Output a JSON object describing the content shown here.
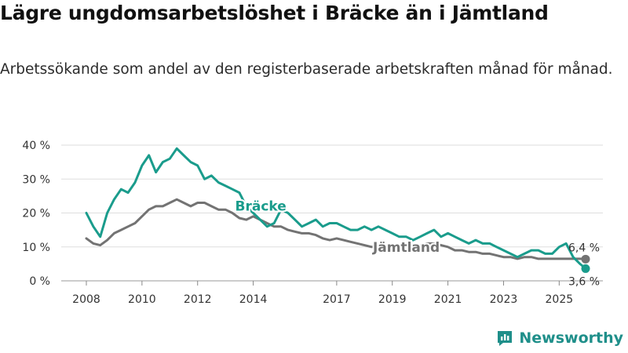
{
  "header": {
    "title": "Lägre ungdomsarbetslöshet i Bräcke än i Jämtland",
    "subtitle": "Arbetssökande som andel av den registerbaserade arbetskraften månad för månad."
  },
  "brand": {
    "name": "Newsworthy"
  },
  "colors": {
    "bracke": "#1a9c8c",
    "jamtland": "#737373",
    "grid": "#dddddd"
  },
  "chart_data": {
    "type": "line",
    "title": "Lägre ungdomsarbetslöshet i Bräcke än i Jämtland",
    "xlabel": "",
    "ylabel": "",
    "xlim": [
      2008,
      2025.95
    ],
    "ylim": [
      0,
      40
    ],
    "yticks": [
      0,
      10,
      20,
      30,
      40
    ],
    "ytick_labels": [
      "0 %",
      "10 %",
      "20 %",
      "30 %",
      "40 %"
    ],
    "xticks": [
      2008,
      2010,
      2012,
      2014,
      2017,
      2019,
      2021,
      2023,
      2025
    ],
    "xtick_labels": [
      "2008",
      "2010",
      "2012",
      "2014",
      "2017",
      "2019",
      "2021",
      "2023",
      "2025"
    ],
    "grid": true,
    "series": [
      {
        "name": "Bräcke",
        "label": "Bräcke",
        "color": "#1a9c8c",
        "end_label": "3,6 %",
        "end_value": 3.6,
        "x": [
          2008.0,
          2008.25,
          2008.5,
          2008.75,
          2009.0,
          2009.25,
          2009.5,
          2009.75,
          2010.0,
          2010.25,
          2010.5,
          2010.75,
          2011.0,
          2011.25,
          2011.5,
          2011.75,
          2012.0,
          2012.25,
          2012.5,
          2012.75,
          2013.0,
          2013.25,
          2013.5,
          2013.75,
          2014.0,
          2014.25,
          2014.5,
          2014.75,
          2015.0,
          2015.25,
          2015.5,
          2015.75,
          2016.0,
          2016.25,
          2016.5,
          2016.75,
          2017.0,
          2017.25,
          2017.5,
          2017.75,
          2018.0,
          2018.25,
          2018.5,
          2018.75,
          2019.0,
          2019.25,
          2019.5,
          2019.75,
          2020.0,
          2020.25,
          2020.5,
          2020.75,
          2021.0,
          2021.25,
          2021.5,
          2021.75,
          2022.0,
          2022.25,
          2022.5,
          2022.75,
          2023.0,
          2023.25,
          2023.5,
          2023.75,
          2024.0,
          2024.25,
          2024.5,
          2024.75,
          2025.0,
          2025.25,
          2025.5,
          2025.75,
          2025.95
        ],
        "y": [
          20,
          16,
          13,
          20,
          24,
          27,
          26,
          29,
          34,
          37,
          32,
          35,
          36,
          39,
          37,
          35,
          34,
          30,
          31,
          29,
          28,
          27,
          26,
          22,
          20,
          18,
          16,
          17,
          21,
          20,
          18,
          16,
          17,
          18,
          16,
          17,
          17,
          16,
          15,
          15,
          16,
          15,
          16,
          15,
          14,
          13,
          13,
          12,
          13,
          14,
          15,
          13,
          14,
          13,
          12,
          11,
          12,
          11,
          11,
          10,
          9,
          8,
          7,
          8,
          9,
          9,
          8,
          8,
          10,
          11,
          7,
          5,
          3.6
        ]
      },
      {
        "name": "Jämtland",
        "label": "Jämtland",
        "color": "#737373",
        "end_label": "6,4 %",
        "end_value": 6.4,
        "x": [
          2008.0,
          2008.25,
          2008.5,
          2008.75,
          2009.0,
          2009.25,
          2009.5,
          2009.75,
          2010.0,
          2010.25,
          2010.5,
          2010.75,
          2011.0,
          2011.25,
          2011.5,
          2011.75,
          2012.0,
          2012.25,
          2012.5,
          2012.75,
          2013.0,
          2013.25,
          2013.5,
          2013.75,
          2014.0,
          2014.25,
          2014.5,
          2014.75,
          2015.0,
          2015.25,
          2015.5,
          2015.75,
          2016.0,
          2016.25,
          2016.5,
          2016.75,
          2017.0,
          2017.25,
          2017.5,
          2017.75,
          2018.0,
          2018.25,
          2018.5,
          2018.75,
          2019.0,
          2019.25,
          2019.5,
          2019.75,
          2020.0,
          2020.25,
          2020.5,
          2020.75,
          2021.0,
          2021.25,
          2021.5,
          2021.75,
          2022.0,
          2022.25,
          2022.5,
          2022.75,
          2023.0,
          2023.25,
          2023.5,
          2023.75,
          2024.0,
          2024.25,
          2024.5,
          2024.75,
          2025.0,
          2025.25,
          2025.5,
          2025.75,
          2025.95
        ],
        "y": [
          12.5,
          11,
          10.5,
          12,
          14,
          15,
          16,
          17,
          19,
          21,
          22,
          22,
          23,
          24,
          23,
          22,
          23,
          23,
          22,
          21,
          21,
          20,
          18.5,
          18,
          19,
          18,
          17,
          16,
          16,
          15,
          14.5,
          14,
          14,
          13.5,
          12.5,
          12,
          12.5,
          12,
          11.5,
          11,
          10.5,
          10,
          10,
          9.5,
          10,
          10,
          10.5,
          10,
          10.5,
          11,
          11,
          10.5,
          10,
          9,
          9,
          8.5,
          8.5,
          8,
          8,
          7.5,
          7,
          7,
          6.5,
          7,
          7,
          6.5,
          6.5,
          6.5,
          6.5,
          6.5,
          6.5,
          6.5,
          6.4
        ]
      }
    ]
  }
}
